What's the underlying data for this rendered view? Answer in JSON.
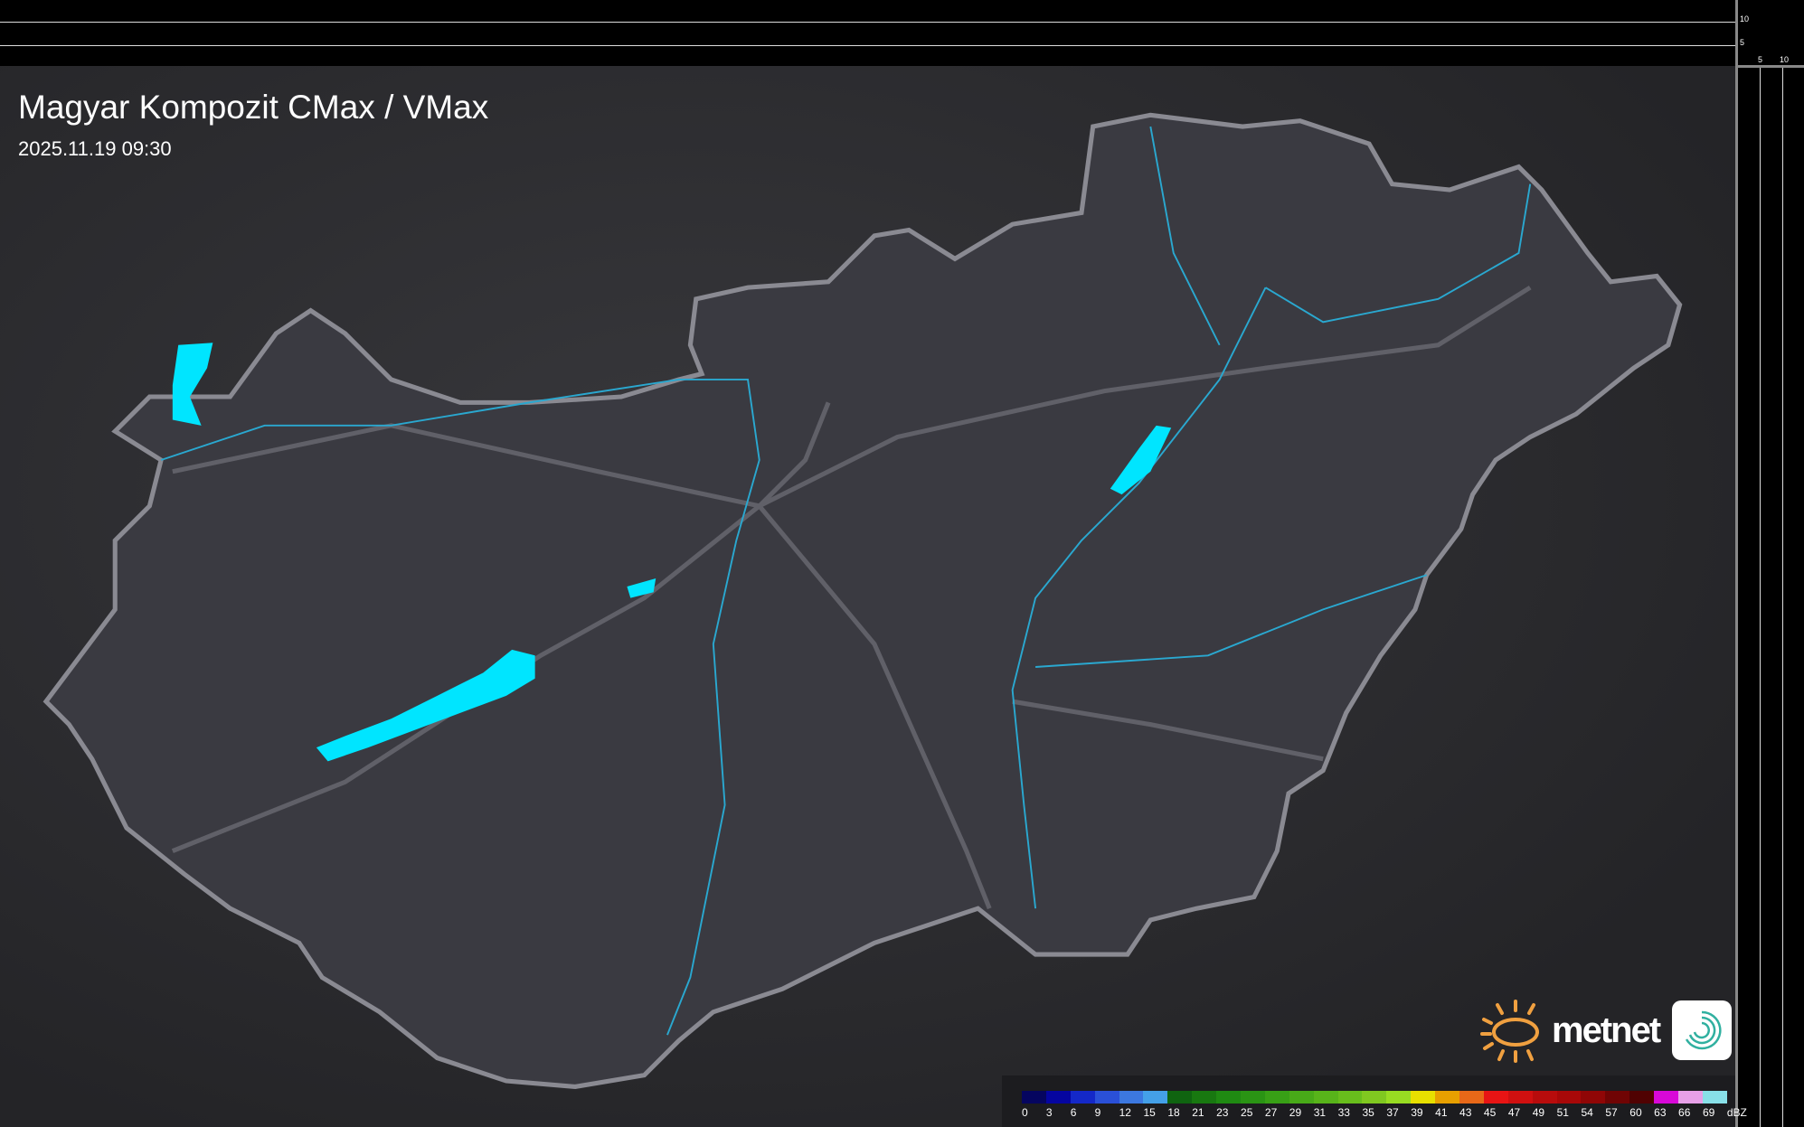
{
  "header": {
    "title": "Magyar Kompozit CMax / VMax",
    "timestamp": "2025.11.19 09:30"
  },
  "profile_axes": {
    "top_ticks": [
      "10",
      "5"
    ],
    "side_ticks": [
      "5",
      "10"
    ]
  },
  "legend": {
    "unit": "dBZ",
    "labels": [
      "0",
      "3",
      "6",
      "9",
      "12",
      "15",
      "18",
      "21",
      "23",
      "25",
      "27",
      "29",
      "31",
      "33",
      "35",
      "37",
      "39",
      "41",
      "43",
      "45",
      "47",
      "49",
      "51",
      "54",
      "57",
      "60",
      "63",
      "66",
      "69"
    ],
    "colors": [
      "#05055f",
      "#0505a0",
      "#1428c8",
      "#2a50d8",
      "#3c78e0",
      "#44a0e8",
      "#0f6410",
      "#187810",
      "#1f8a12",
      "#2a9414",
      "#38a016",
      "#48aa18",
      "#58b41a",
      "#68be1c",
      "#80c820",
      "#98dc22",
      "#e8e000",
      "#e8a000",
      "#e86818",
      "#e81414",
      "#d01010",
      "#b80c0c",
      "#a80808",
      "#900606",
      "#700404",
      "#500202",
      "#d808d8",
      "#e8a0e8",
      "#88e0e8"
    ]
  },
  "brand": {
    "name": "metnet",
    "sun_color": "#f0a040",
    "app_color": "#30b0a0"
  },
  "map_colors": {
    "lakes": "#00e5ff",
    "rivers": "#2aa8d0",
    "border": "#8a8a90",
    "roads": "#6a6a70"
  }
}
